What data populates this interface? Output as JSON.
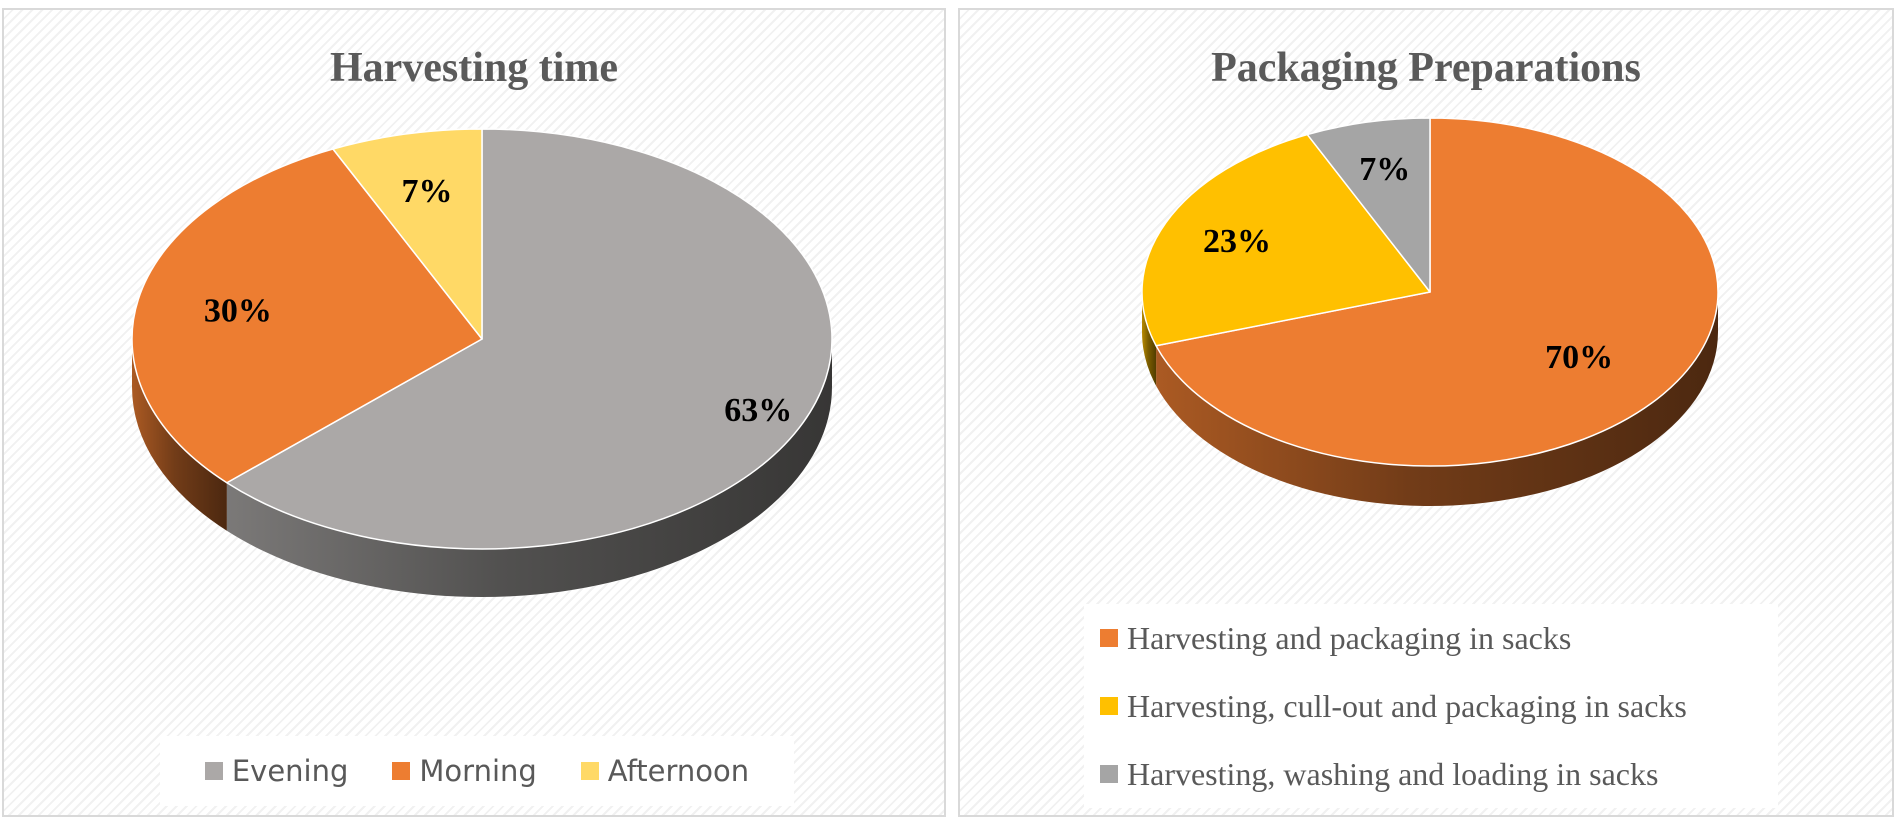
{
  "chart_data": [
    {
      "type": "pie",
      "title": "Harvesting time",
      "slices": [
        {
          "name": "Evening",
          "value": 63,
          "label": "63%",
          "color": "#ABA8A7"
        },
        {
          "name": "Morning",
          "value": 30,
          "label": "30%",
          "color": "#ED7D31"
        },
        {
          "name": "Afternoon",
          "value": 7,
          "label": "7%",
          "color": "#FFD966"
        }
      ],
      "legend": {
        "placement": "bottom",
        "items": [
          "Evening",
          "Morning",
          "Afternoon"
        ]
      },
      "style": "3d"
    },
    {
      "type": "pie",
      "title": "Packaging Preparations",
      "slices": [
        {
          "name": "Harvesting and packaging in sacks",
          "value": 70,
          "label": "70%",
          "color": "#ED7D31"
        },
        {
          "name": "Harvesting, cull-out and packaging in sacks",
          "value": 23,
          "label": "23%",
          "color": "#FFC000"
        },
        {
          "name": "Harvesting, washing and loading in sacks",
          "value": 7,
          "label": "7%",
          "color": "#A5A5A5"
        }
      ],
      "legend": {
        "placement": "bottom",
        "items": [
          "Harvesting and packaging in sacks",
          "Harvesting, cull-out and packaging in sacks",
          "Harvesting, washing and loading in sacks"
        ]
      },
      "style": "3d"
    }
  ]
}
